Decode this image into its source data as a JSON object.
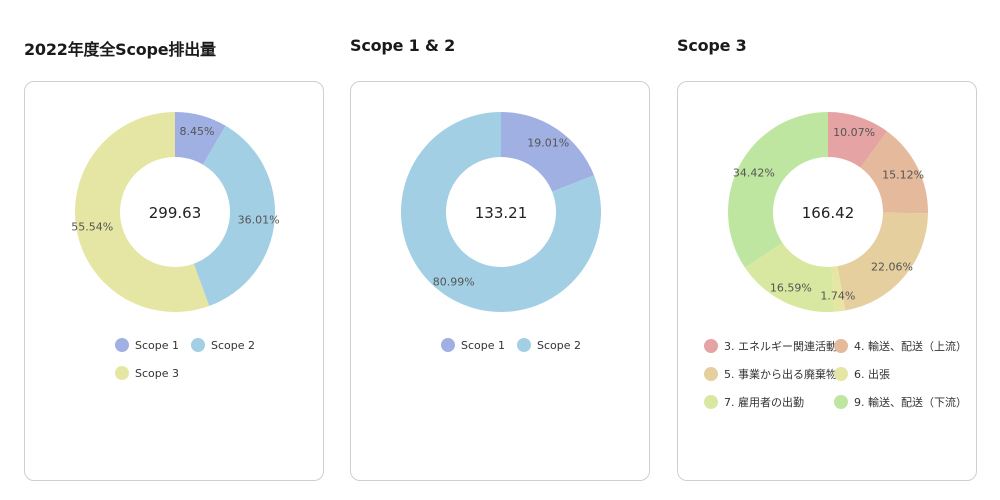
{
  "chart_data": [
    {
      "type": "pie",
      "title": "2022年度全Scope排出量",
      "total": "299.63",
      "slices": [
        {
          "name": "Scope 1",
          "value": 8.45,
          "label": "8.45%",
          "color": "#a0b0e2"
        },
        {
          "name": "Scope 2",
          "value": 36.01,
          "label": "36.01%",
          "color": "#a3cfe5"
        },
        {
          "name": "Scope 3",
          "value": 55.54,
          "label": "55.54%",
          "color": "#e5e6a3"
        }
      ]
    },
    {
      "type": "pie",
      "title": "Scope 1 & 2",
      "total": "133.21",
      "slices": [
        {
          "name": "Scope 1",
          "value": 19.01,
          "label": "19.01%",
          "color": "#a0b0e2"
        },
        {
          "name": "Scope 2",
          "value": 80.99,
          "label": "80.99%",
          "color": "#a3cfe5"
        }
      ]
    },
    {
      "type": "pie",
      "title": "Scope 3",
      "total": "166.42",
      "slices": [
        {
          "name": "3. エネルギー関連活動",
          "value": 10.07,
          "label": "10.07%",
          "color": "#e5a3a3"
        },
        {
          "name": "4. 輸送、配送（上流）",
          "value": 15.12,
          "label": "15.12%",
          "color": "#e5b99b"
        },
        {
          "name": "5. 事業から出る廃棄物",
          "value": 22.06,
          "label": "22.06%",
          "color": "#e5cf9f"
        },
        {
          "name": "6. 出張",
          "value": 1.74,
          "label": "1.74%",
          "color": "#e5e6a3"
        },
        {
          "name": "7. 雇用者の出勤",
          "value": 16.59,
          "label": "16.59%",
          "color": "#d9e8a0"
        },
        {
          "name": "9. 輸送、配送（下流）",
          "value": 34.42,
          "label": "34.42%",
          "color": "#bfe6a0"
        }
      ]
    }
  ]
}
